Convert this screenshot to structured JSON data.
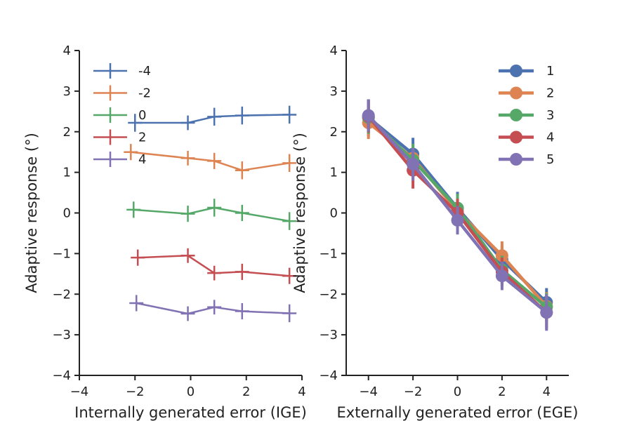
{
  "chart_data": [
    {
      "type": "line",
      "xlabel": "Internally generated error (IGE)",
      "ylabel": "Adaptive response (°)",
      "xlim": [
        -4,
        4
      ],
      "ylim": [
        -4,
        4
      ],
      "xticks": [
        "−4",
        "−2",
        "0",
        "2",
        "4"
      ],
      "yticks": [
        "−4",
        "−3",
        "−2",
        "−1",
        "0",
        "1",
        "2",
        "3",
        "4"
      ],
      "marker": "plus",
      "errorbars": true,
      "legend_position": "top-left",
      "series": [
        {
          "name": "-4",
          "color": "#4c72b0",
          "points": [
            {
              "x": -2.0,
              "y": 2.22,
              "err": 0.22
            },
            {
              "x": -0.1,
              "y": 2.22,
              "err": 0.18
            },
            {
              "x": 0.85,
              "y": 2.37,
              "err": 0.22
            },
            {
              "x": 1.85,
              "y": 2.4,
              "err": 0.22
            },
            {
              "x": 3.55,
              "y": 2.42,
              "err": 0.22
            }
          ]
        },
        {
          "name": "-2",
          "color": "#dd8452",
          "points": [
            {
              "x": -2.15,
              "y": 1.5,
              "err": 0.2
            },
            {
              "x": -0.1,
              "y": 1.35,
              "err": 0.18
            },
            {
              "x": 0.85,
              "y": 1.28,
              "err": 0.2
            },
            {
              "x": 1.85,
              "y": 1.05,
              "err": 0.22
            },
            {
              "x": 3.55,
              "y": 1.23,
              "err": 0.22
            }
          ]
        },
        {
          "name": "0",
          "color": "#55a868",
          "points": [
            {
              "x": -2.05,
              "y": 0.08,
              "err": 0.2
            },
            {
              "x": -0.1,
              "y": -0.02,
              "err": 0.2
            },
            {
              "x": 0.85,
              "y": 0.13,
              "err": 0.22
            },
            {
              "x": 1.85,
              "y": 0.0,
              "err": 0.2
            },
            {
              "x": 3.55,
              "y": -0.2,
              "err": 0.22
            }
          ]
        },
        {
          "name": "2",
          "color": "#c44e52",
          "points": [
            {
              "x": -1.9,
              "y": -1.1,
              "err": 0.2
            },
            {
              "x": -0.1,
              "y": -1.05,
              "err": 0.18
            },
            {
              "x": 0.85,
              "y": -1.48,
              "err": 0.18
            },
            {
              "x": 1.85,
              "y": -1.45,
              "err": 0.2
            },
            {
              "x": 3.55,
              "y": -1.55,
              "err": 0.2
            }
          ]
        },
        {
          "name": "4",
          "color": "#8172b3",
          "points": [
            {
              "x": -1.95,
              "y": -2.22,
              "err": 0.2
            },
            {
              "x": -0.1,
              "y": -2.48,
              "err": 0.18
            },
            {
              "x": 0.85,
              "y": -2.32,
              "err": 0.18
            },
            {
              "x": 1.85,
              "y": -2.42,
              "err": 0.2
            },
            {
              "x": 3.55,
              "y": -2.47,
              "err": 0.22
            }
          ]
        }
      ]
    },
    {
      "type": "line",
      "xlabel": "Externally generated error (EGE)",
      "ylabel": "Adaptive response (°)",
      "xlim": [
        -5,
        5
      ],
      "ylim": [
        -4,
        4
      ],
      "xticks": [
        "−4",
        "−2",
        "0",
        "2",
        "4"
      ],
      "yticks": [
        "−4",
        "−3",
        "−2",
        "−1",
        "0",
        "1",
        "2",
        "3",
        "4"
      ],
      "x": [
        -4,
        -2,
        0,
        2,
        4
      ],
      "marker": "circle",
      "errorbars": true,
      "legend_position": "top-right",
      "series": [
        {
          "name": "1",
          "color": "#4c72b0",
          "values": [
            2.35,
            1.45,
            0.12,
            -1.15,
            -2.2
          ],
          "err": [
            0.45,
            0.4,
            0.4,
            0.35,
            0.35
          ]
        },
        {
          "name": "2",
          "color": "#dd8452",
          "values": [
            2.22,
            1.35,
            0.05,
            -1.05,
            -2.3
          ],
          "err": [
            0.4,
            0.35,
            0.35,
            0.35,
            0.35
          ]
        },
        {
          "name": "3",
          "color": "#55a868",
          "values": [
            2.35,
            1.3,
            0.12,
            -1.4,
            -2.32
          ],
          "err": [
            0.4,
            0.4,
            0.35,
            0.35,
            0.35
          ]
        },
        {
          "name": "4",
          "color": "#c44e52",
          "values": [
            2.38,
            1.05,
            0.0,
            -1.45,
            -2.45
          ],
          "err": [
            0.4,
            0.45,
            0.35,
            0.35,
            0.4
          ]
        },
        {
          "name": "5",
          "color": "#8172b3",
          "values": [
            2.4,
            1.2,
            -0.18,
            -1.55,
            -2.45
          ],
          "err": [
            0.4,
            0.4,
            0.35,
            0.35,
            0.45
          ]
        }
      ]
    }
  ]
}
